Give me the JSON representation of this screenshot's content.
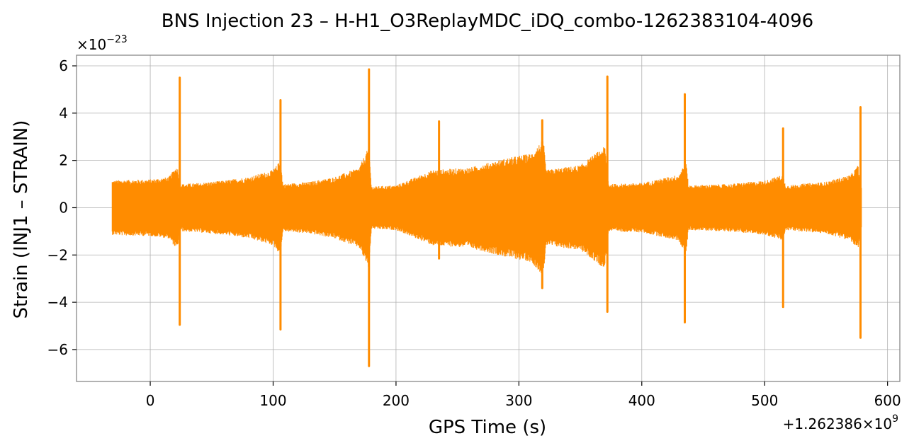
{
  "chart_data": {
    "type": "line",
    "title": "BNS Injection 23 – H-H1_O3ReplayMDC_iDQ_combo-1262383104-4096",
    "xlabel": "GPS Time (s)",
    "ylabel": "Strain (INJ1 – STRAIN)",
    "x_offset_label": "+1.262386×10",
    "x_offset_exp": "9",
    "y_scale_label": "×10",
    "y_scale_exp": "−23",
    "xlim": [
      -60,
      610
    ],
    "ylim": [
      -7.35,
      6.45
    ],
    "xticks": [
      0,
      100,
      200,
      300,
      400,
      500,
      600
    ],
    "xtick_labels": [
      "0",
      "100",
      "200",
      "300",
      "400",
      "500",
      "600"
    ],
    "yticks": [
      -6,
      -4,
      -2,
      0,
      2,
      4,
      6
    ],
    "ytick_labels": [
      "−6",
      "−4",
      "−2",
      "0",
      "2",
      "4",
      "6"
    ],
    "grid": true,
    "line_color": "#ff8c00",
    "series": [
      {
        "x_range": [
          -31,
          579
        ],
        "envelope": [
          [
            -31,
            1.15
          ],
          [
            -20,
            1.18
          ],
          [
            0,
            1.2
          ],
          [
            15,
            1.3
          ],
          [
            22,
            1.8
          ],
          [
            24,
            1.0
          ],
          [
            40,
            1.05
          ],
          [
            60,
            1.15
          ],
          [
            80,
            1.3
          ],
          [
            100,
            1.6
          ],
          [
            106,
            2.0
          ],
          [
            108,
            1.0
          ],
          [
            130,
            1.1
          ],
          [
            150,
            1.3
          ],
          [
            170,
            1.7
          ],
          [
            178,
            2.6
          ],
          [
            180,
            0.9
          ],
          [
            200,
            0.95
          ],
          [
            230,
            1.6
          ],
          [
            260,
            1.7
          ],
          [
            290,
            2.1
          ],
          [
            310,
            2.3
          ],
          [
            320,
            2.9
          ],
          [
            322,
            1.6
          ],
          [
            350,
            1.8
          ],
          [
            370,
            2.6
          ],
          [
            373,
            1.0
          ],
          [
            400,
            1.05
          ],
          [
            430,
            1.4
          ],
          [
            436,
            2.0
          ],
          [
            438,
            0.95
          ],
          [
            470,
            1.0
          ],
          [
            500,
            1.15
          ],
          [
            515,
            1.4
          ],
          [
            517,
            0.95
          ],
          [
            550,
            1.1
          ],
          [
            570,
            1.4
          ],
          [
            576,
            1.8
          ],
          [
            579,
            0.8
          ]
        ],
        "spikes": [
          {
            "x": 24,
            "max": 5.5,
            "min": -4.95
          },
          {
            "x": 106,
            "max": 4.55,
            "min": -5.15
          },
          {
            "x": 178,
            "max": 5.85,
            "min": -6.7
          },
          {
            "x": 235,
            "max": 3.65,
            "min": -2.15
          },
          {
            "x": 319,
            "max": 3.7,
            "min": -3.4
          },
          {
            "x": 372,
            "max": 5.55,
            "min": -4.4
          },
          {
            "x": 435,
            "max": 4.8,
            "min": -4.85
          },
          {
            "x": 515,
            "max": 3.35,
            "min": -4.2
          },
          {
            "x": 578,
            "max": 4.25,
            "min": -5.5
          }
        ]
      }
    ]
  }
}
